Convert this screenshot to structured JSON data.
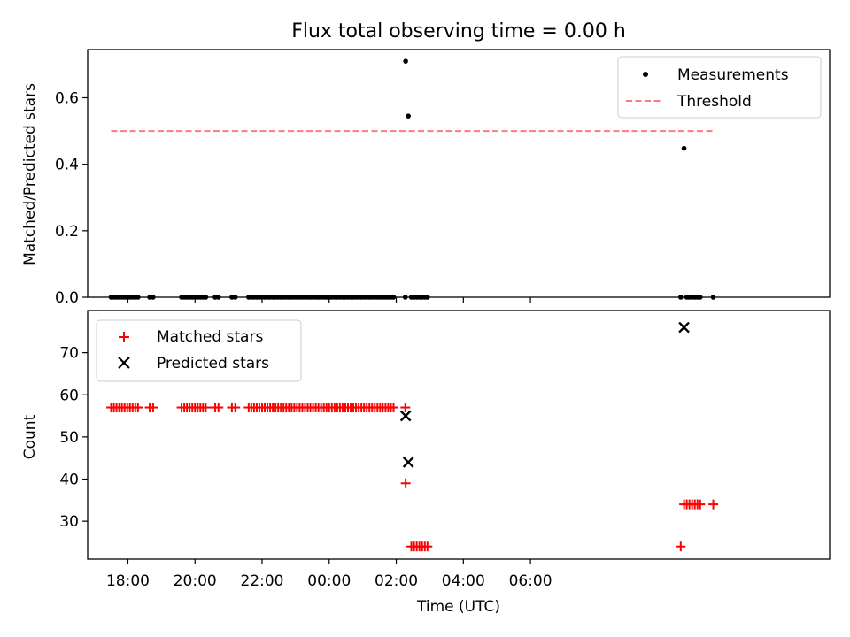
{
  "chart_data": [
    {
      "type": "scatter",
      "title": "Flux total observing time = 0.00 h",
      "xlabel": "",
      "ylabel": "Matched/Predicted stars",
      "xlim": [
        -1.2,
        20.92
      ],
      "ylim": [
        0.0,
        0.745
      ],
      "yticks": [
        0.0,
        0.2,
        0.4,
        0.6
      ],
      "ytick_labels": [
        "0.0",
        "0.2",
        "0.4",
        "0.6"
      ],
      "legend_position": "top-right",
      "series": [
        {
          "name": "Measurements",
          "marker": "dot",
          "color": "#000000",
          "points": [
            [
              -0.5,
              0
            ],
            [
              -0.42,
              0
            ],
            [
              -0.34,
              0
            ],
            [
              -0.26,
              0
            ],
            [
              -0.18,
              0
            ],
            [
              -0.1,
              0
            ],
            [
              -0.02,
              0
            ],
            [
              0.06,
              0
            ],
            [
              0.14,
              0
            ],
            [
              0.22,
              0
            ],
            [
              0.3,
              0
            ],
            [
              0.65,
              0
            ],
            [
              0.75,
              0
            ],
            [
              1.6,
              0
            ],
            [
              1.68,
              0
            ],
            [
              1.76,
              0
            ],
            [
              1.84,
              0
            ],
            [
              1.92,
              0
            ],
            [
              2.0,
              0
            ],
            [
              2.08,
              0
            ],
            [
              2.16,
              0
            ],
            [
              2.24,
              0
            ],
            [
              2.32,
              0
            ],
            [
              2.6,
              0
            ],
            [
              2.7,
              0
            ],
            [
              3.1,
              0
            ],
            [
              3.2,
              0
            ],
            [
              3.6,
              0
            ],
            [
              3.68,
              0
            ],
            [
              3.76,
              0
            ],
            [
              3.84,
              0
            ],
            [
              3.92,
              0
            ],
            [
              4.0,
              0
            ],
            [
              4.08,
              0
            ],
            [
              4.16,
              0
            ],
            [
              4.24,
              0
            ],
            [
              4.32,
              0
            ],
            [
              4.4,
              0
            ],
            [
              4.48,
              0
            ],
            [
              4.56,
              0
            ],
            [
              4.64,
              0
            ],
            [
              4.72,
              0
            ],
            [
              4.8,
              0
            ],
            [
              4.88,
              0
            ],
            [
              4.96,
              0
            ],
            [
              5.04,
              0
            ],
            [
              5.12,
              0
            ],
            [
              5.2,
              0
            ],
            [
              5.28,
              0
            ],
            [
              5.36,
              0
            ],
            [
              5.44,
              0
            ],
            [
              5.52,
              0
            ],
            [
              5.6,
              0
            ],
            [
              5.68,
              0
            ],
            [
              5.76,
              0
            ],
            [
              5.84,
              0
            ],
            [
              5.92,
              0
            ],
            [
              6.0,
              0
            ],
            [
              6.08,
              0
            ],
            [
              6.16,
              0
            ],
            [
              6.24,
              0
            ],
            [
              6.32,
              0
            ],
            [
              6.4,
              0
            ],
            [
              6.48,
              0
            ],
            [
              6.56,
              0
            ],
            [
              6.64,
              0
            ],
            [
              6.72,
              0
            ],
            [
              6.8,
              0
            ],
            [
              6.88,
              0
            ],
            [
              6.96,
              0
            ],
            [
              7.04,
              0
            ],
            [
              7.12,
              0
            ],
            [
              7.2,
              0
            ],
            [
              7.28,
              0
            ],
            [
              7.36,
              0
            ],
            [
              7.44,
              0
            ],
            [
              7.52,
              0
            ],
            [
              7.6,
              0
            ],
            [
              7.68,
              0
            ],
            [
              7.76,
              0
            ],
            [
              7.84,
              0
            ],
            [
              7.92,
              0
            ],
            [
              8.27,
              0
            ],
            [
              8.28,
              0.71
            ],
            [
              8.36,
              0.545
            ],
            [
              8.45,
              0
            ],
            [
              8.53,
              0
            ],
            [
              8.61,
              0
            ],
            [
              8.69,
              0
            ],
            [
              8.77,
              0
            ],
            [
              8.85,
              0
            ],
            [
              8.93,
              0
            ],
            [
              16.48,
              0
            ],
            [
              16.58,
              0.448
            ],
            [
              16.66,
              0
            ],
            [
              16.74,
              0
            ],
            [
              16.82,
              0
            ],
            [
              16.9,
              0
            ],
            [
              16.98,
              0
            ],
            [
              17.06,
              0
            ],
            [
              17.45,
              0
            ]
          ]
        },
        {
          "name": "Threshold",
          "line_style": "dashed",
          "color": "#ff7b7b",
          "x": [
            -0.5,
            17.5
          ],
          "y": [
            0.5,
            0.5
          ]
        }
      ]
    },
    {
      "type": "scatter",
      "title": "",
      "xlabel": "Time (UTC)",
      "ylabel": "Count",
      "xlim": [
        -1.2,
        20.92
      ],
      "ylim": [
        21,
        80
      ],
      "yticks": [
        30,
        40,
        50,
        60,
        70
      ],
      "ytick_labels": [
        "30",
        "40",
        "50",
        "60",
        "70"
      ],
      "xticks": [
        0,
        2,
        4,
        6,
        8,
        10,
        12
      ],
      "xtick_labels": [
        "18:00",
        "20:00",
        "22:00",
        "00:00",
        "02:00",
        "04:00",
        "06:00"
      ],
      "legend_position": "top-left",
      "series": [
        {
          "name": "Matched stars",
          "marker": "plus",
          "color": "#ff0000",
          "points": [
            [
              -0.5,
              57
            ],
            [
              -0.42,
              57
            ],
            [
              -0.34,
              57
            ],
            [
              -0.26,
              57
            ],
            [
              -0.18,
              57
            ],
            [
              -0.1,
              57
            ],
            [
              -0.02,
              57
            ],
            [
              0.06,
              57
            ],
            [
              0.14,
              57
            ],
            [
              0.22,
              57
            ],
            [
              0.3,
              57
            ],
            [
              0.65,
              57
            ],
            [
              0.75,
              57
            ],
            [
              1.6,
              57
            ],
            [
              1.68,
              57
            ],
            [
              1.76,
              57
            ],
            [
              1.84,
              57
            ],
            [
              1.92,
              57
            ],
            [
              2.0,
              57
            ],
            [
              2.08,
              57
            ],
            [
              2.16,
              57
            ],
            [
              2.24,
              57
            ],
            [
              2.32,
              57
            ],
            [
              2.6,
              57
            ],
            [
              2.7,
              57
            ],
            [
              3.1,
              57
            ],
            [
              3.2,
              57
            ],
            [
              3.6,
              57
            ],
            [
              3.68,
              57
            ],
            [
              3.76,
              57
            ],
            [
              3.84,
              57
            ],
            [
              3.92,
              57
            ],
            [
              4.0,
              57
            ],
            [
              4.08,
              57
            ],
            [
              4.16,
              57
            ],
            [
              4.24,
              57
            ],
            [
              4.32,
              57
            ],
            [
              4.4,
              57
            ],
            [
              4.48,
              57
            ],
            [
              4.56,
              57
            ],
            [
              4.64,
              57
            ],
            [
              4.72,
              57
            ],
            [
              4.8,
              57
            ],
            [
              4.88,
              57
            ],
            [
              4.96,
              57
            ],
            [
              5.04,
              57
            ],
            [
              5.12,
              57
            ],
            [
              5.2,
              57
            ],
            [
              5.28,
              57
            ],
            [
              5.36,
              57
            ],
            [
              5.44,
              57
            ],
            [
              5.52,
              57
            ],
            [
              5.6,
              57
            ],
            [
              5.68,
              57
            ],
            [
              5.76,
              57
            ],
            [
              5.84,
              57
            ],
            [
              5.92,
              57
            ],
            [
              6.0,
              57
            ],
            [
              6.08,
              57
            ],
            [
              6.16,
              57
            ],
            [
              6.24,
              57
            ],
            [
              6.32,
              57
            ],
            [
              6.4,
              57
            ],
            [
              6.48,
              57
            ],
            [
              6.56,
              57
            ],
            [
              6.64,
              57
            ],
            [
              6.72,
              57
            ],
            [
              6.8,
              57
            ],
            [
              6.88,
              57
            ],
            [
              6.96,
              57
            ],
            [
              7.04,
              57
            ],
            [
              7.12,
              57
            ],
            [
              7.2,
              57
            ],
            [
              7.28,
              57
            ],
            [
              7.36,
              57
            ],
            [
              7.44,
              57
            ],
            [
              7.52,
              57
            ],
            [
              7.6,
              57
            ],
            [
              7.68,
              57
            ],
            [
              7.76,
              57
            ],
            [
              7.84,
              57
            ],
            [
              7.92,
              57
            ],
            [
              8.27,
              57
            ],
            [
              8.28,
              39
            ],
            [
              8.45,
              24
            ],
            [
              8.53,
              24
            ],
            [
              8.61,
              24
            ],
            [
              8.69,
              24
            ],
            [
              8.77,
              24
            ],
            [
              8.85,
              24
            ],
            [
              8.93,
              24
            ],
            [
              16.48,
              24
            ],
            [
              16.58,
              34
            ],
            [
              16.66,
              34
            ],
            [
              16.74,
              34
            ],
            [
              16.82,
              34
            ],
            [
              16.9,
              34
            ],
            [
              16.98,
              34
            ],
            [
              17.06,
              34
            ],
            [
              17.45,
              34
            ]
          ]
        },
        {
          "name": "Predicted stars",
          "marker": "x",
          "color": "#000000",
          "points": [
            [
              8.28,
              55
            ],
            [
              8.36,
              44
            ],
            [
              16.58,
              76
            ]
          ]
        }
      ]
    }
  ]
}
